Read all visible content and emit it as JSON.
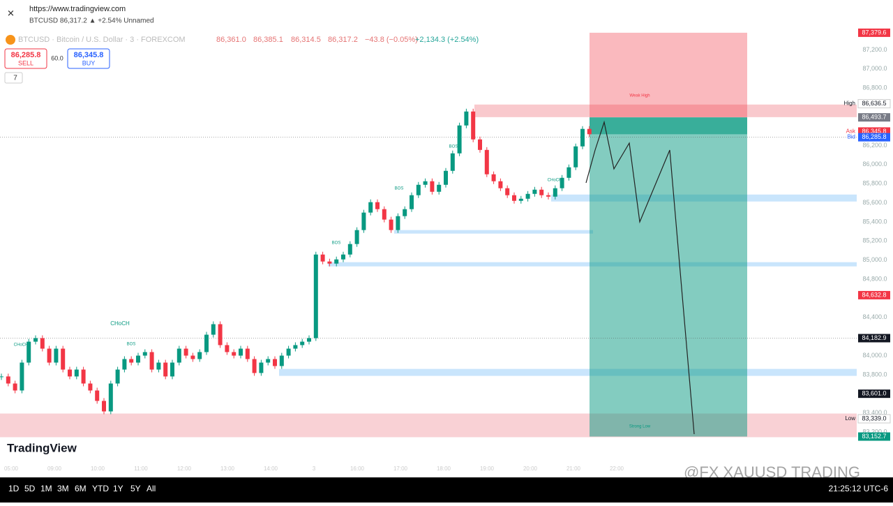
{
  "browser": {
    "url": "https://www.tradingview.com",
    "tab_title": "BTCUSD 86,317.2 ▲ +2.54% Unnamed"
  },
  "symbol": {
    "name": "BTCUSD · Bitcoin / U.S. Dollar · 3 · FOREXCOM",
    "open": "86,361.0",
    "high": "86,385.1",
    "low": "86,314.5",
    "close": "86,317.2",
    "change": "−43.8 (−0.05%)",
    "day_change": "+2,134.3 (+2.54%)"
  },
  "trade": {
    "sell_price": "86,285.8",
    "sell": "SELL",
    "spread": "60.0",
    "buy_price": "86,345.8",
    "buy": "BUY"
  },
  "indicators_count": "7",
  "logo": "TradingView",
  "watermark": "@FX XAUUSD TRADING",
  "toolbar": {
    "ranges": [
      "1D",
      "5D",
      "1M",
      "3M",
      "6M",
      "YTD",
      "1Y",
      "5Y",
      "All"
    ],
    "clock": "21:25:12 UTC-6"
  },
  "chart_data": {
    "type": "candlestick",
    "closes": [
      83782,
      83708,
      83635,
      83927,
      84146,
      84183,
      84073,
      83927,
      84073,
      83854,
      83782,
      83854,
      83708,
      83635,
      83526,
      83416,
      83708,
      83854,
      83964,
      83927,
      84000,
      84037,
      83854,
      83927,
      83782,
      83927,
      84073,
      84000,
      83964,
      84037,
      84219,
      84329,
      84110,
      84037,
      84000,
      84073,
      83964,
      83818,
      83927,
      83964,
      83891,
      84000,
      84073,
      84110,
      84146,
      84183,
      85058,
      84985,
      84963,
      85007,
      85058,
      85168,
      85314,
      85497,
      85606,
      85533,
      85424,
      85314,
      85460,
      85533,
      85679,
      85788,
      85825,
      85715,
      85788,
      85934,
      86117,
      86409,
      86555,
      86263,
      86153,
      85898,
      85825,
      85752,
      85679,
      85620,
      85642,
      85693,
      85737,
      85679,
      85664,
      85752,
      85861,
      85971,
      86190,
      86373,
      86317.2
    ],
    "up_color": "#089981",
    "down_color": "#f23645",
    "ylim": [
      83120,
      87430
    ],
    "yticks": [
      {
        "value": 83200,
        "label": "83,200.0"
      },
      {
        "value": 83400,
        "label": "83,400.0"
      },
      {
        "value": 83800,
        "label": "83,800.0"
      },
      {
        "value": 84000,
        "label": "84,000.0"
      },
      {
        "value": 84400,
        "label": "84,400.0"
      },
      {
        "value": 84800,
        "label": "84,800.0"
      },
      {
        "value": 85000,
        "label": "85,000.0"
      },
      {
        "value": 85200,
        "label": "85,200.0"
      },
      {
        "value": 85400,
        "label": "85,400.0"
      },
      {
        "value": 85600,
        "label": "85,600.0"
      },
      {
        "value": 85800,
        "label": "85,800.0"
      },
      {
        "value": 86000,
        "label": "86,000.0"
      },
      {
        "value": 86200,
        "label": "86,200.0"
      },
      {
        "value": 86800,
        "label": "86,800.0"
      },
      {
        "value": 87000,
        "label": "87,000.0"
      },
      {
        "value": 87200,
        "label": "87,200.0"
      }
    ],
    "price_labels": [
      {
        "value": 87379.6,
        "label": "87,379.6",
        "color": "#f23645"
      },
      {
        "value": 86636.5,
        "label": "86,636.5",
        "tag": "High",
        "color": "#ffffff"
      },
      {
        "value": 86493.7,
        "label": "86,493.7",
        "color": "#787b86"
      },
      {
        "value": 86345.8,
        "label": "86,345.8",
        "tag": "Ask",
        "color": "#f23645"
      },
      {
        "value": 86285.8,
        "label": "86,285.8",
        "tag": "Bid",
        "color": "#2962ff"
      },
      {
        "value": 84632.8,
        "label": "84,632.8",
        "color": "#f23645"
      },
      {
        "value": 84182.9,
        "label": "84,182.9",
        "color": "#131722"
      },
      {
        "value": 83601.0,
        "label": "83,601.0",
        "color": "#131722"
      },
      {
        "value": 83339.0,
        "label": "83,339.0",
        "tag": "Low",
        "color": "#ffffff"
      },
      {
        "value": 83152.7,
        "label": "83,152.7",
        "color": "#089981"
      }
    ],
    "zones": [
      {
        "top": 86628,
        "bottom": 86496,
        "color": "#f8bbc0"
      },
      {
        "top": 85686,
        "bottom": 85613,
        "color": "#bbdefb"
      },
      {
        "top": 85314,
        "bottom": 85277,
        "color": "#bbdefb"
      },
      {
        "top": 84978,
        "bottom": 84934,
        "color": "#bbdefb"
      },
      {
        "top": 83861,
        "bottom": 83788,
        "color": "#bbdefb"
      },
      {
        "top": 83394,
        "bottom": 83146,
        "color": "#f8c6cb"
      }
    ],
    "annotations": [
      "CHoCH",
      "CHoCH",
      "BOS",
      "BOS",
      "BOS",
      "CHoCH",
      "BOS",
      "Weak High",
      "Strong Low"
    ],
    "time_labels": [
      "05:00",
      "09:00",
      "10:00",
      "11:00",
      "12:00",
      "13:00",
      "14:00",
      "3",
      "16:00",
      "17:00",
      "18:00",
      "19:00",
      "20:00",
      "21:00",
      "22:00"
    ]
  }
}
